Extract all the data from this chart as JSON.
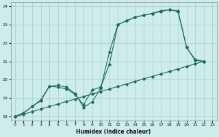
{
  "xlabel": "Humidex (Indice chaleur)",
  "xlim": [
    -0.5,
    23.5
  ],
  "ylim": [
    17.8,
    24.2
  ],
  "yticks": [
    18,
    19,
    20,
    21,
    22,
    23,
    24
  ],
  "xticks": [
    0,
    1,
    2,
    3,
    4,
    5,
    6,
    7,
    8,
    9,
    10,
    11,
    12,
    13,
    14,
    15,
    16,
    17,
    18,
    19,
    20,
    21,
    22,
    23
  ],
  "bg_color": "#cdecea",
  "grid_color": "#aad4d0",
  "line_color": "#1a6b5a",
  "lines": [
    {
      "x": [
        0,
        1,
        2,
        3,
        4,
        5,
        6,
        7,
        8,
        9,
        10,
        11,
        12,
        13,
        14,
        15,
        16,
        17,
        18,
        19,
        20,
        21,
        22
      ],
      "y": [
        18.0,
        18.2,
        18.55,
        18.85,
        19.65,
        19.7,
        19.6,
        19.25,
        18.5,
        18.8,
        19.55,
        21.5,
        23.0,
        23.2,
        23.4,
        23.5,
        23.6,
        23.75,
        23.8,
        23.75,
        21.75,
        21.1,
        21.0
      ]
    },
    {
      "x": [
        0,
        1,
        2,
        3,
        4,
        5,
        6,
        7,
        8,
        9,
        10,
        11,
        12,
        13,
        14,
        15,
        16,
        17,
        18,
        19,
        20,
        21,
        22
      ],
      "y": [
        18.0,
        18.2,
        18.55,
        18.9,
        19.65,
        19.6,
        19.5,
        19.2,
        18.65,
        19.45,
        19.6,
        20.85,
        23.0,
        23.2,
        23.4,
        23.5,
        23.6,
        23.7,
        23.8,
        23.7,
        21.75,
        21.05,
        21.0
      ]
    },
    {
      "x": [
        0,
        1,
        2,
        3,
        4,
        5,
        6,
        7,
        8,
        9,
        10,
        11,
        12,
        13,
        14,
        15,
        16,
        17,
        18,
        19,
        20,
        21,
        22
      ],
      "y": [
        18.0,
        18.13,
        18.27,
        18.4,
        18.55,
        18.68,
        18.82,
        18.95,
        19.09,
        19.22,
        19.36,
        19.5,
        19.64,
        19.77,
        19.91,
        20.05,
        20.18,
        20.32,
        20.45,
        20.59,
        20.73,
        20.86,
        21.0
      ]
    }
  ]
}
